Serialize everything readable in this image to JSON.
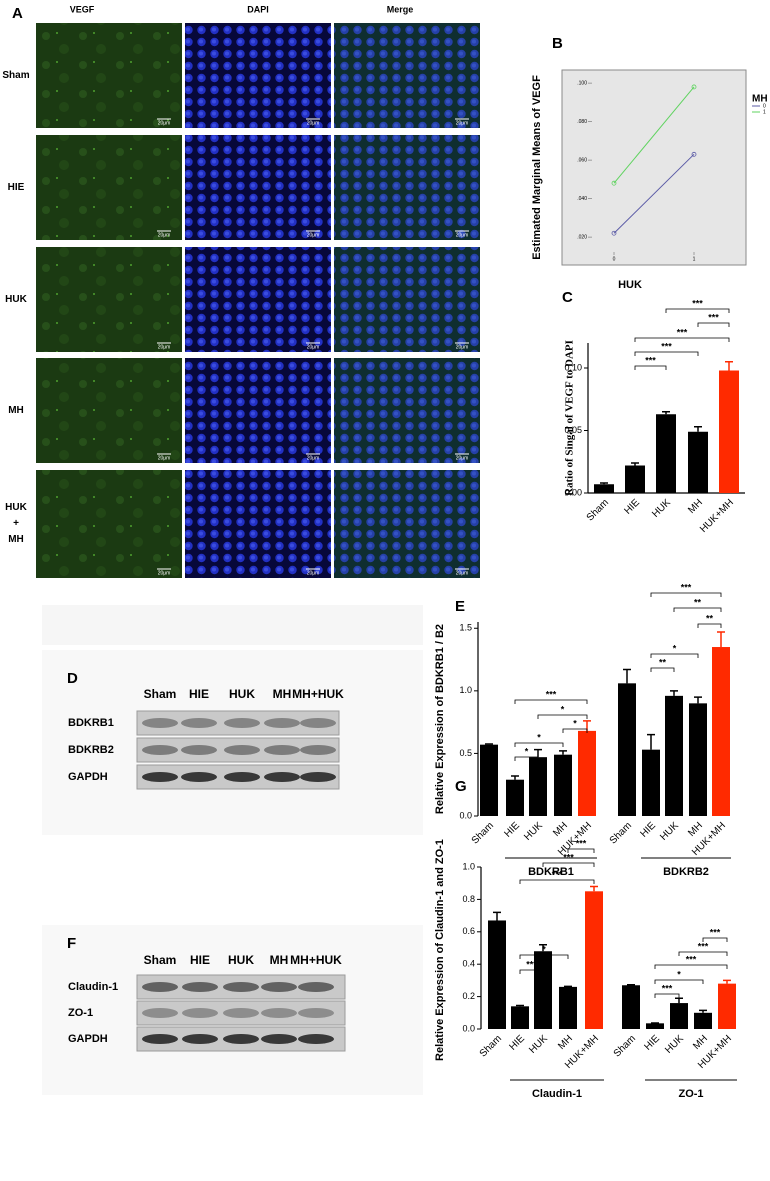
{
  "panel_labels": [
    "A",
    "B",
    "C",
    "D",
    "E",
    "F",
    "G"
  ],
  "microscopy": {
    "columns": [
      "VEGF",
      "DAPI",
      "Merge"
    ],
    "rows": [
      "Sham",
      "HIE",
      "HUK",
      "MH",
      "HUK\n+\nMH"
    ],
    "scale_bar": "20μm"
  },
  "blots": [
    {
      "lanes": [
        "Sham",
        "HIE",
        "HUK",
        "MH",
        "MH+HUK"
      ],
      "rows": [
        "BDKRB1",
        "BDKRB2",
        "GAPDH"
      ]
    },
    {
      "lanes": [
        "Sham",
        "HIE",
        "HUK",
        "MH",
        "MH+HUK"
      ],
      "rows": [
        "Claudin-1",
        "ZO-1",
        "GAPDH"
      ]
    }
  ],
  "chart_data": [
    {
      "type": "line",
      "y_label": "Estimated Marginal Means of VEGF",
      "x_label": "HUK",
      "legend_title": "MH",
      "legend": "right",
      "background": "#e6e6e6",
      "x": [
        0,
        1
      ],
      "xlim": [
        -0.65,
        1.65
      ],
      "xticks": [
        0,
        1
      ],
      "ylim": [
        0.0055,
        0.1068
      ],
      "yticks": [
        {
          "value": 0.02,
          "label": ".020"
        },
        {
          "value": 0.04,
          "label": ".040"
        },
        {
          "value": 0.06,
          "label": ".060"
        },
        {
          "value": 0.08,
          "label": ".080"
        },
        {
          "value": 0.1,
          "label": ".100"
        }
      ],
      "series": [
        {
          "name": "0",
          "color": "#5b5ba6",
          "values": [
            0.022,
            0.063
          ]
        },
        {
          "name": "1",
          "color": "#5fd35f",
          "values": [
            0.048,
            0.098
          ]
        }
      ]
    },
    {
      "type": "bar",
      "y_label": "Ratio of Singal of VEGF to DAPI",
      "categories": [
        "Sham",
        "HIE",
        "HUK",
        "MH",
        "HUK+MH"
      ],
      "values": [
        0.007,
        0.022,
        0.063,
        0.049,
        0.098
      ],
      "errors": [
        0.001,
        0.002,
        0.002,
        0.004,
        0.007
      ],
      "colors": [
        "#000000",
        "#000000",
        "#000000",
        "#000000",
        "#ff2a00"
      ],
      "ylim": [
        0,
        0.12
      ],
      "yticks": [
        {
          "value": 0,
          "label": "0.00"
        },
        {
          "value": 0.05,
          "label": "0.05"
        },
        {
          "value": 0.1,
          "label": "0.10"
        }
      ],
      "comparisons": [
        {
          "pair": [
            1,
            2
          ],
          "label": "***"
        },
        {
          "pair": [
            1,
            3
          ],
          "label": "***"
        },
        {
          "pair": [
            1,
            4
          ],
          "label": "***"
        },
        {
          "pair": [
            3,
            4
          ],
          "label": "***"
        },
        {
          "pair": [
            2,
            4
          ],
          "label": "***"
        }
      ]
    },
    {
      "type": "grouped_bar",
      "y_label": "Relative Expression of BDKRB1 / B2",
      "colors": [
        "#000000",
        "#000000",
        "#000000",
        "#000000",
        "#ff2a00"
      ],
      "ylim": [
        0,
        1.55
      ],
      "yticks": [
        {
          "value": 0,
          "label": "0.0"
        },
        0.5,
        {
          "value": 1,
          "label": "1.0"
        },
        1.5
      ],
      "groups": [
        {
          "name": "BDKRB1",
          "categories": [
            "Sham",
            "HIE",
            "HUK",
            "MH",
            "HUK+MH"
          ],
          "values": [
            0.57,
            0.29,
            0.47,
            0.49,
            0.68
          ],
          "errors": [
            0.005,
            0.03,
            0.06,
            0.03,
            0.08
          ],
          "comparisons": [
            {
              "pair": [
                1,
                2
              ],
              "label": "*"
            },
            {
              "pair": [
                1,
                3
              ],
              "label": "*"
            },
            {
              "pair": [
                3,
                4
              ],
              "label": "*"
            },
            {
              "pair": [
                2,
                4
              ],
              "label": "*"
            },
            {
              "pair": [
                1,
                4
              ],
              "label": "***"
            }
          ]
        },
        {
          "name": "BDKRB2",
          "categories": [
            "Sham",
            "HIE",
            "HUK",
            "MH",
            "HUK+MH"
          ],
          "values": [
            1.06,
            0.53,
            0.96,
            0.9,
            1.35
          ],
          "errors": [
            0.11,
            0.12,
            0.04,
            0.05,
            0.12
          ],
          "comparisons": [
            {
              "pair": [
                1,
                2
              ],
              "label": "**"
            },
            {
              "pair": [
                1,
                3
              ],
              "label": "*"
            },
            {
              "pair": [
                3,
                4
              ],
              "label": "**"
            },
            {
              "pair": [
                2,
                4
              ],
              "label": "**"
            },
            {
              "pair": [
                1,
                4
              ],
              "label": "***"
            }
          ]
        }
      ]
    },
    {
      "type": "grouped_bar",
      "y_label": "Relative Expression of Claudin-1 and ZO-1",
      "colors": [
        "#000000",
        "#000000",
        "#000000",
        "#000000",
        "#ff2a00"
      ],
      "ylim": [
        0,
        1
      ],
      "yticks": [
        {
          "value": 0,
          "label": "0.0"
        },
        0.2,
        0.4,
        0.6,
        0.8,
        {
          "value": 1,
          "label": "1.0"
        }
      ],
      "groups": [
        {
          "name": "Claudin-1",
          "categories": [
            "Sham",
            "HIE",
            "HUK",
            "MH",
            "HUK+MH"
          ],
          "values": [
            0.67,
            0.14,
            0.48,
            0.26,
            0.85
          ],
          "errors": [
            0.05,
            0.005,
            0.04,
            0.003,
            0.03
          ],
          "comparisons": [
            {
              "pair": [
                1,
                2
              ],
              "label": "***"
            },
            {
              "pair": [
                1,
                3
              ],
              "label": "*"
            },
            {
              "pair": [
                1,
                4
              ],
              "label": "***"
            },
            {
              "pair": [
                2,
                4
              ],
              "label": "***"
            },
            {
              "pair": [
                3,
                4
              ],
              "label": "***"
            }
          ]
        },
        {
          "name": "ZO-1",
          "categories": [
            "Sham",
            "HIE",
            "HUK",
            "MH",
            "HUK+MH"
          ],
          "values": [
            0.27,
            0.035,
            0.16,
            0.1,
            0.28
          ],
          "errors": [
            0.003,
            0.002,
            0.03,
            0.015,
            0.02
          ],
          "comparisons": [
            {
              "pair": [
                1,
                2
              ],
              "label": "***"
            },
            {
              "pair": [
                1,
                3
              ],
              "label": "*"
            },
            {
              "pair": [
                1,
                4
              ],
              "label": "***"
            },
            {
              "pair": [
                2,
                4
              ],
              "label": "***"
            },
            {
              "pair": [
                3,
                4
              ],
              "label": "***"
            }
          ]
        }
      ]
    }
  ]
}
